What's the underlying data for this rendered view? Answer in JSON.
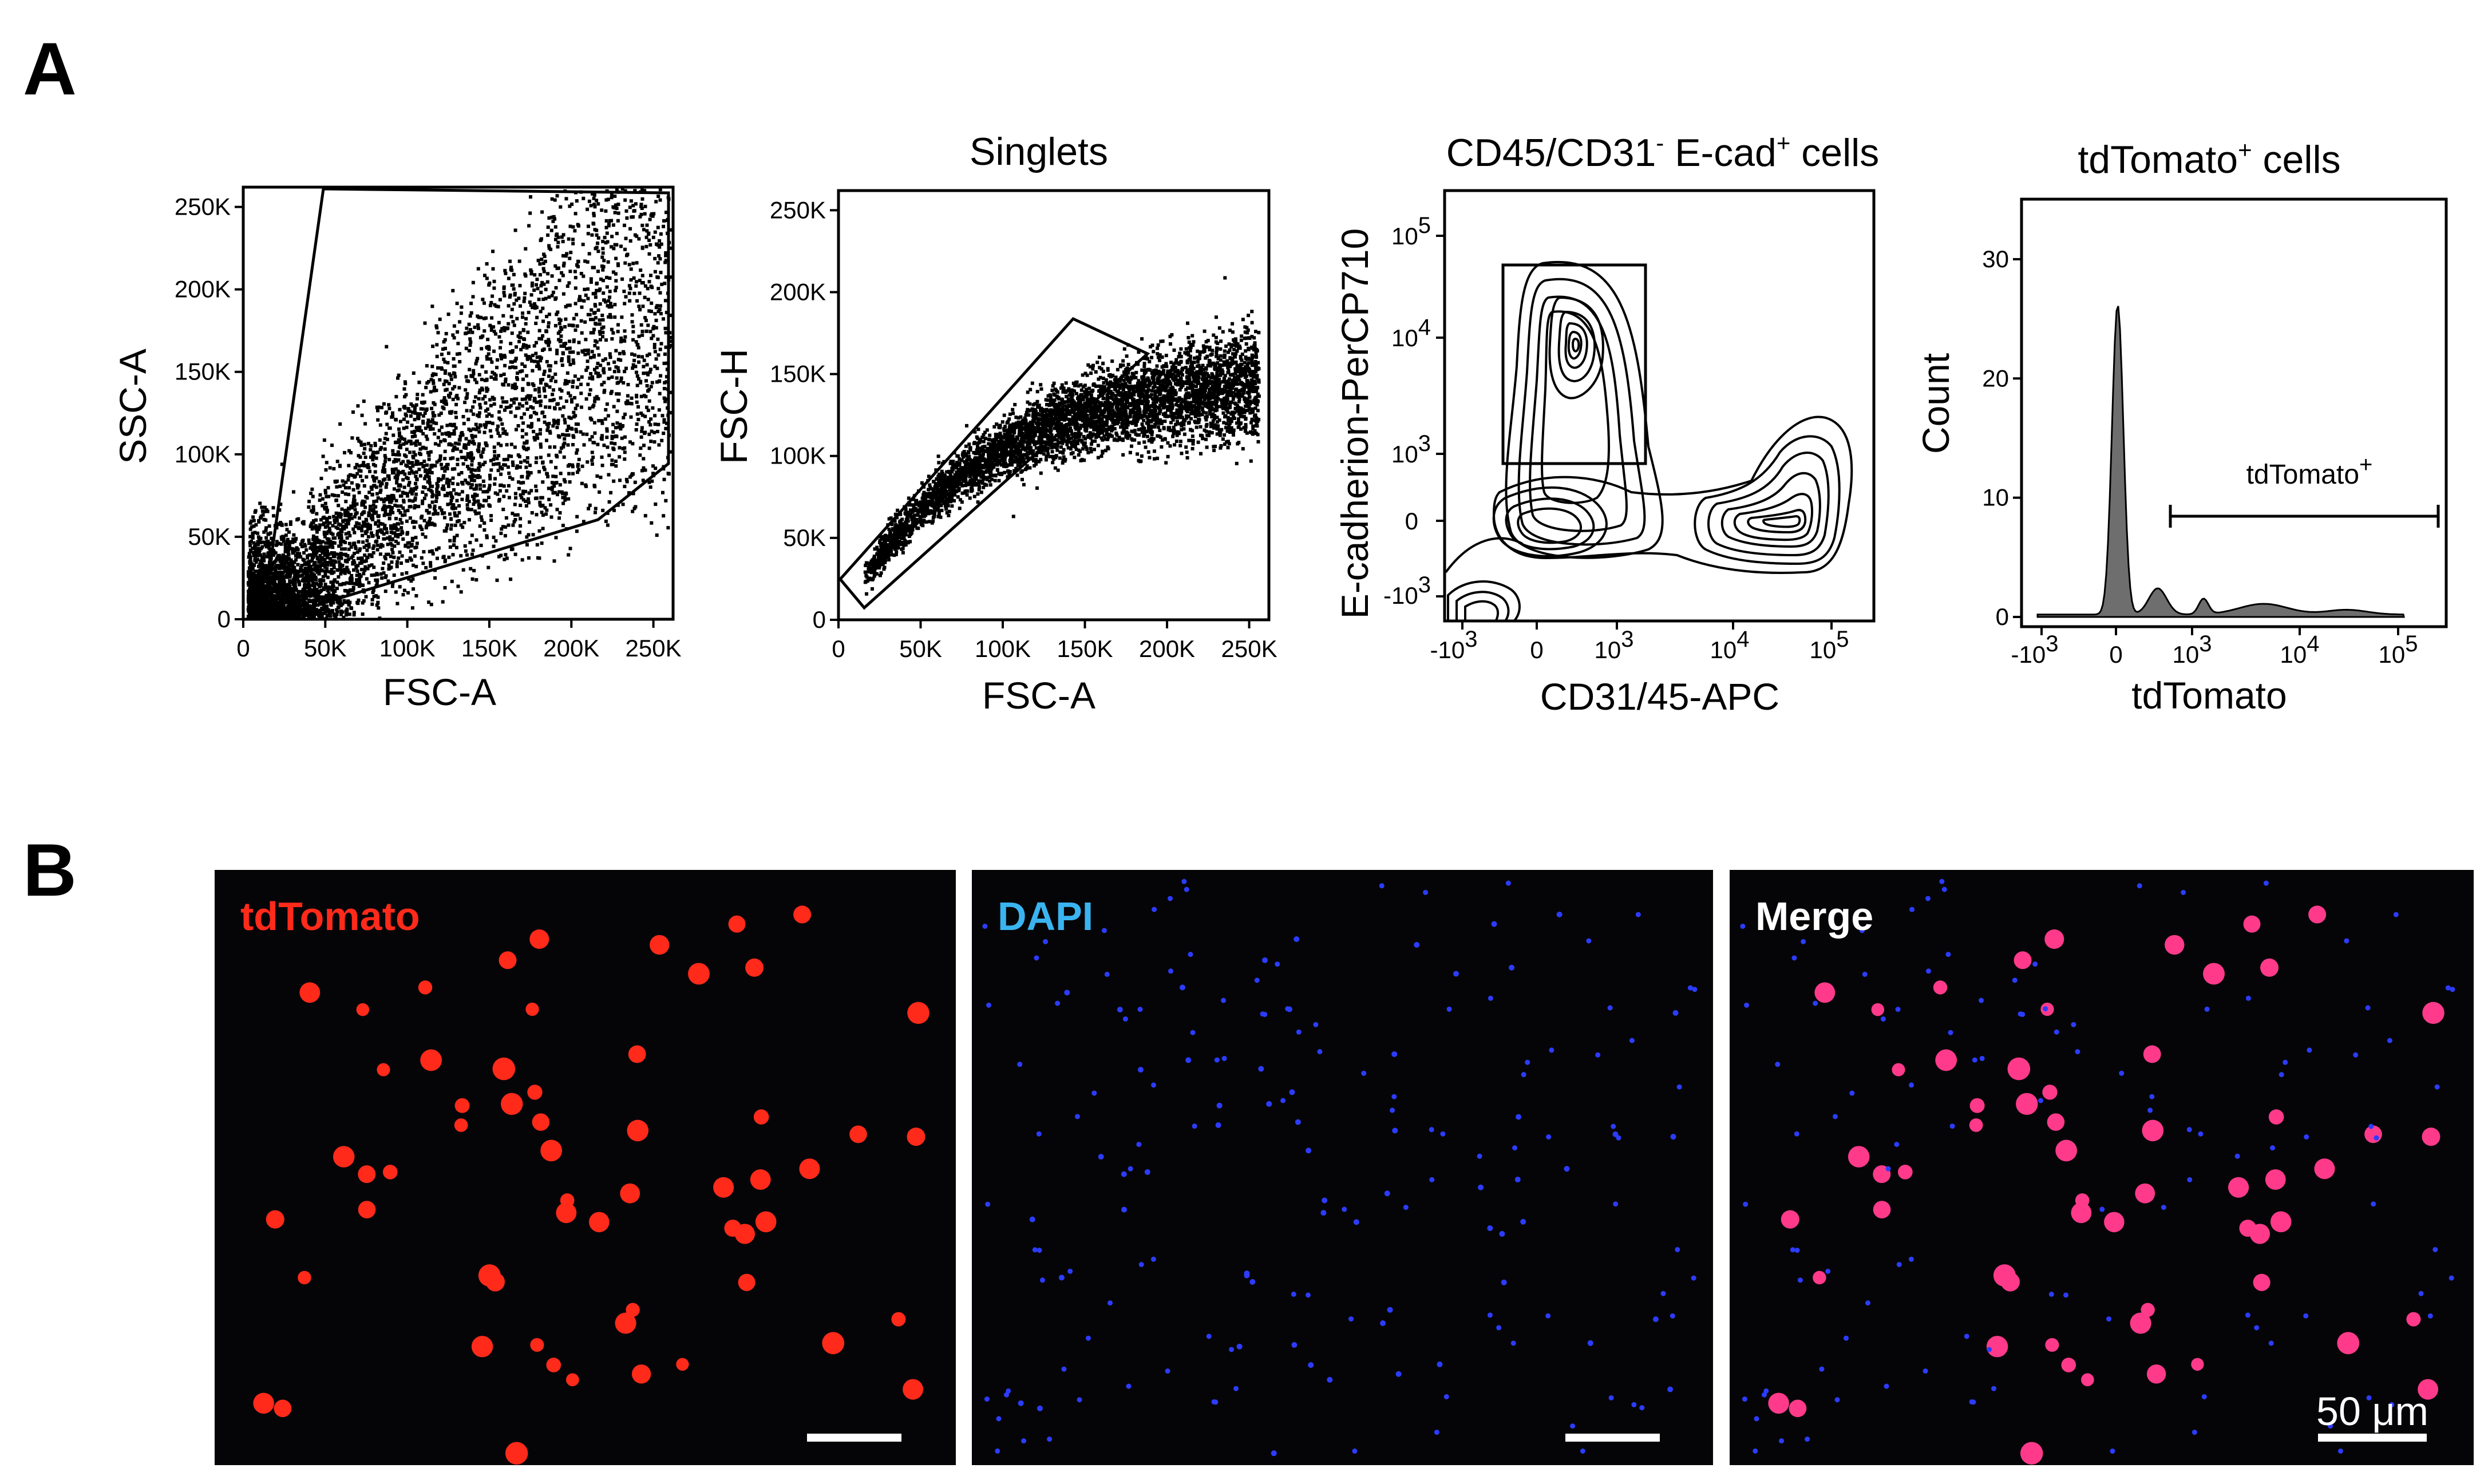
{
  "figure": {
    "panel_a": "A",
    "panel_b": "B"
  },
  "chart_data": [
    {
      "type": "scatter",
      "title": "",
      "xlabel": "FSC-A",
      "ylabel": "SSC-A",
      "xlim": [
        0,
        262000
      ],
      "ylim": [
        0,
        262000
      ],
      "xticks": [
        "0",
        "50K",
        "100K",
        "150K",
        "200K",
        "250K"
      ],
      "yticks": [
        "0",
        "50K",
        "100K",
        "150K",
        "200K",
        "250K"
      ],
      "gate": "polygon"
    },
    {
      "type": "scatter",
      "title": "Singlets",
      "xlabel": "FSC-A",
      "ylabel": "FSC-H",
      "xlim": [
        0,
        262000
      ],
      "ylim": [
        0,
        262000
      ],
      "xticks": [
        "0",
        "50K",
        "100K",
        "150K",
        "200K",
        "250K"
      ],
      "yticks": [
        "0",
        "50K",
        "100K",
        "150K",
        "200K",
        "250K"
      ],
      "gate": "diagonal polygon"
    },
    {
      "type": "contour",
      "title_main": "CD45/CD31",
      "title_sup1": "-",
      "title_mid": " E-cad",
      "title_sup2": "+",
      "title_end": " cells",
      "xlabel": "CD31/45-APC",
      "ylabel": "E-cadherion-PerCP710",
      "xticks": [
        {
          "base": "-10",
          "exp": "3"
        },
        {
          "base": "0",
          "exp": ""
        },
        {
          "base": "10",
          "exp": "3"
        },
        {
          "base": "10",
          "exp": "4"
        },
        {
          "base": "10",
          "exp": "5"
        }
      ],
      "yticks": [
        {
          "base": "-10",
          "exp": "3"
        },
        {
          "base": "0",
          "exp": ""
        },
        {
          "base": "10",
          "exp": "3"
        },
        {
          "base": "10",
          "exp": "4"
        },
        {
          "base": "10",
          "exp": "5"
        }
      ],
      "gate": "rectangle on E-cad+ CD31/45- population"
    },
    {
      "type": "histogram",
      "title_main": "tdTomato",
      "title_sup": "+",
      "title_end": " cells",
      "xlabel": "tdTomato",
      "ylabel": "Count",
      "ylim": [
        0,
        35
      ],
      "yticks": [
        "0",
        "10",
        "20",
        "30"
      ],
      "xticks": [
        {
          "base": "-10",
          "exp": "3"
        },
        {
          "base": "0",
          "exp": ""
        },
        {
          "base": "10",
          "exp": "3"
        },
        {
          "base": "10",
          "exp": "4"
        },
        {
          "base": "10",
          "exp": "5"
        }
      ],
      "peak_count": 26,
      "gate_label": "tdTomato",
      "gate_label_sup": "+"
    }
  ],
  "micrographs": [
    {
      "label": "tdTomato",
      "color": "#ff2a1a"
    },
    {
      "label": "DAPI",
      "color": "#3ab4f0"
    },
    {
      "label": "Merge",
      "color": "#ffffff"
    }
  ],
  "scale_bar": "50 μm"
}
